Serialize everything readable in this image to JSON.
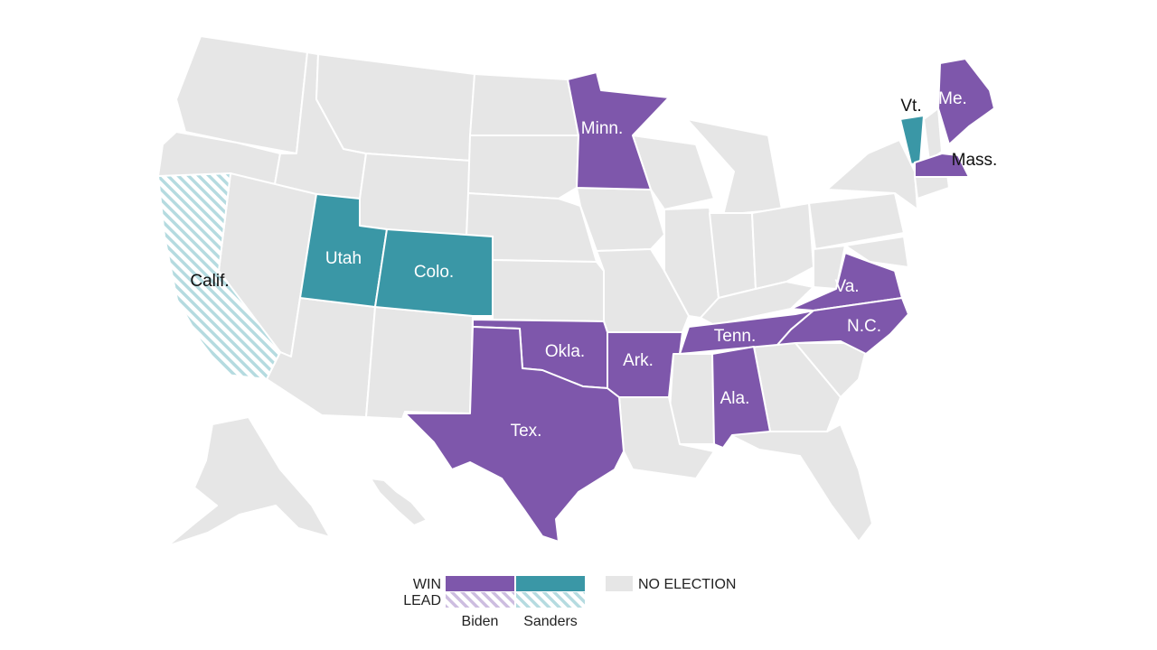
{
  "colors": {
    "biden": "#7e57ab",
    "sanders": "#3a97a6",
    "lead_biden_hatch": "#cdbde0",
    "lead_sanders_hatch": "#b5dbe0",
    "no_election": "#e6e6e6",
    "border": "#ffffff"
  },
  "states": {
    "calif": {
      "label": "Calif.",
      "status": "lead",
      "candidate": "Sanders"
    },
    "utah": {
      "label": "Utah",
      "status": "win",
      "candidate": "Sanders"
    },
    "colo": {
      "label": "Colo.",
      "status": "win",
      "candidate": "Sanders"
    },
    "vt": {
      "label": "Vt.",
      "status": "win",
      "candidate": "Sanders"
    },
    "minn": {
      "label": "Minn.",
      "status": "win",
      "candidate": "Biden"
    },
    "me": {
      "label": "Me.",
      "status": "win",
      "candidate": "Biden"
    },
    "mass": {
      "label": "Mass.",
      "status": "win",
      "candidate": "Biden"
    },
    "okla": {
      "label": "Okla.",
      "status": "win",
      "candidate": "Biden"
    },
    "ark": {
      "label": "Ark.",
      "status": "win",
      "candidate": "Biden"
    },
    "tex": {
      "label": "Tex.",
      "status": "win",
      "candidate": "Biden"
    },
    "tenn": {
      "label": "Tenn.",
      "status": "win",
      "candidate": "Biden"
    },
    "ala": {
      "label": "Ala.",
      "status": "win",
      "candidate": "Biden"
    },
    "va": {
      "label": "Va.",
      "status": "win",
      "candidate": "Biden"
    },
    "nc": {
      "label": "N.C.",
      "status": "win",
      "candidate": "Biden"
    }
  },
  "legend": {
    "win_label": "WIN",
    "lead_label": "LEAD",
    "biden_label": "Biden",
    "sanders_label": "Sanders",
    "no_election_label": "NO ELECTION"
  }
}
